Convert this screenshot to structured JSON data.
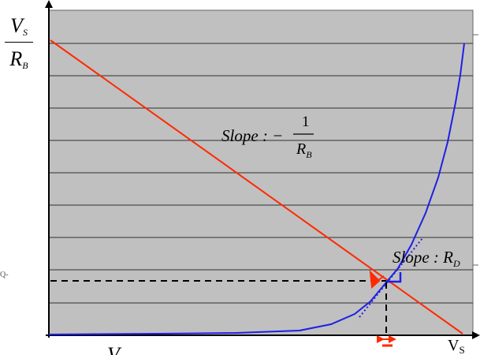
{
  "y_axis_label": {
    "numerator": "V",
    "numerator_sub": "S",
    "denominator": "R",
    "denominator_sub": "B"
  },
  "x_axis_label": "V",
  "x_axis_label_sub": "S",
  "bottom_left_label": "V",
  "left_edge_fragment": "Q-",
  "slope_load_line": {
    "prefix": "Slope : −",
    "numerator": "1",
    "denominator": "R",
    "denominator_sub": "B"
  },
  "slope_diode": {
    "prefix": "Slope : R",
    "sub": "D"
  },
  "colors": {
    "plot_bg": "#c0c0c0",
    "load_line": "#ff2a00",
    "diode_curve": "#1f1fe6",
    "grid": "#303030",
    "dashed": "#000000",
    "arrow": "#ff2a00"
  }
}
